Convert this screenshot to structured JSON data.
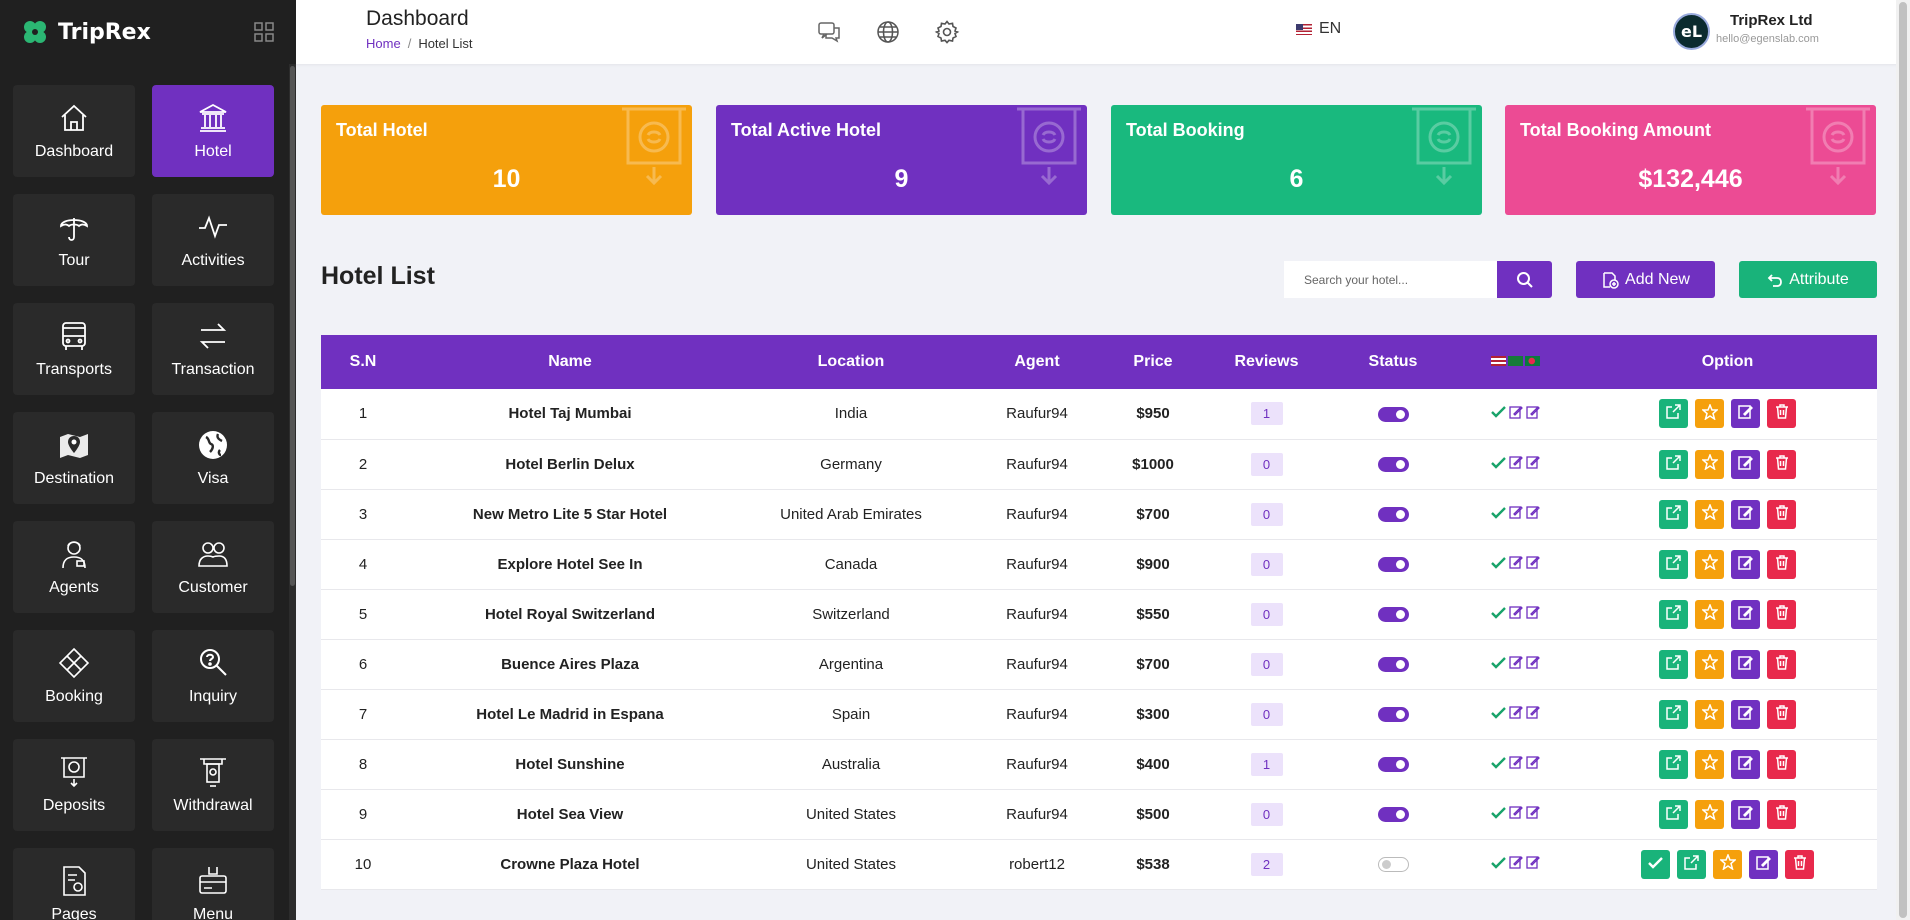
{
  "app": {
    "name": "TripRex"
  },
  "header": {
    "title": "Dashboard",
    "breadcrumb": {
      "home": "Home",
      "sep": "/",
      "current": "Hotel List"
    },
    "language": "EN",
    "user": {
      "initials": "eL",
      "name": "TripRex Ltd",
      "email": "hello@egenslab.com"
    }
  },
  "sidebar": {
    "items": [
      {
        "label": "Dashboard",
        "icon": "home-icon"
      },
      {
        "label": "Hotel",
        "icon": "hotel-icon",
        "active": true
      },
      {
        "label": "Tour",
        "icon": "umbrella-icon"
      },
      {
        "label": "Activities",
        "icon": "activity-icon"
      },
      {
        "label": "Transports",
        "icon": "bus-icon"
      },
      {
        "label": "Transaction",
        "icon": "transfer-icon"
      },
      {
        "label": "Destination",
        "icon": "map-pin-icon"
      },
      {
        "label": "Visa",
        "icon": "globe-icon"
      },
      {
        "label": "Agents",
        "icon": "agent-icon"
      },
      {
        "label": "Customer",
        "icon": "customers-icon"
      },
      {
        "label": "Booking",
        "icon": "booking-icon"
      },
      {
        "label": "Inquiry",
        "icon": "inquiry-icon"
      },
      {
        "label": "Deposits",
        "icon": "deposit-icon"
      },
      {
        "label": "Withdrawal",
        "icon": "withdrawal-icon"
      },
      {
        "label": "Pages",
        "icon": "pages-icon"
      },
      {
        "label": "Menu",
        "icon": "menu-icon"
      }
    ]
  },
  "stats": [
    {
      "title": "Total Hotel",
      "value": "10",
      "color": "#f5a00c"
    },
    {
      "title": "Total Active Hotel",
      "value": "9",
      "color": "#7030c0"
    },
    {
      "title": "Total Booking",
      "value": "6",
      "color": "#19b97e"
    },
    {
      "title": "Total Booking Amount",
      "value": "$132,446",
      "color": "#ec4b94"
    }
  ],
  "list": {
    "title": "Hotel List",
    "search_placeholder": "Search your hotel...",
    "add_label": "Add New",
    "attribute_label": "Attribute"
  },
  "table": {
    "headers": {
      "sn": "S.N",
      "name": "Name",
      "location": "Location",
      "agent": "Agent",
      "price": "Price",
      "reviews": "Reviews",
      "status": "Status",
      "option": "Option"
    },
    "rows": [
      {
        "sn": "1",
        "name": "Hotel Taj Mumbai",
        "location": "India",
        "agent": "Raufur94",
        "price": "$950",
        "reviews": "1",
        "active": true,
        "approve": false
      },
      {
        "sn": "2",
        "name": "Hotel Berlin Delux",
        "location": "Germany",
        "agent": "Raufur94",
        "price": "$1000",
        "reviews": "0",
        "active": true,
        "approve": false
      },
      {
        "sn": "3",
        "name": "New Metro Lite 5 Star Hotel",
        "location": "United Arab Emirates",
        "agent": "Raufur94",
        "price": "$700",
        "reviews": "0",
        "active": true,
        "approve": false
      },
      {
        "sn": "4",
        "name": "Explore Hotel See In",
        "location": "Canada",
        "agent": "Raufur94",
        "price": "$900",
        "reviews": "0",
        "active": true,
        "approve": false
      },
      {
        "sn": "5",
        "name": "Hotel Royal Switzerland",
        "location": "Switzerland",
        "agent": "Raufur94",
        "price": "$550",
        "reviews": "0",
        "active": true,
        "approve": false
      },
      {
        "sn": "6",
        "name": "Buence Aires Plaza",
        "location": "Argentina",
        "agent": "Raufur94",
        "price": "$700",
        "reviews": "0",
        "active": true,
        "approve": false
      },
      {
        "sn": "7",
        "name": "Hotel Le Madrid in Espana",
        "location": "Spain",
        "agent": "Raufur94",
        "price": "$300",
        "reviews": "0",
        "active": true,
        "approve": false
      },
      {
        "sn": "8",
        "name": "Hotel Sunshine",
        "location": "Australia",
        "agent": "Raufur94",
        "price": "$400",
        "reviews": "1",
        "active": true,
        "approve": false
      },
      {
        "sn": "9",
        "name": "Hotel Sea View",
        "location": "United States",
        "agent": "Raufur94",
        "price": "$500",
        "reviews": "0",
        "active": true,
        "approve": false
      },
      {
        "sn": "10",
        "name": "Crowne Plaza Hotel",
        "location": "United States",
        "agent": "robert12",
        "price": "$538",
        "reviews": "2",
        "active": false,
        "approve": true
      }
    ]
  }
}
